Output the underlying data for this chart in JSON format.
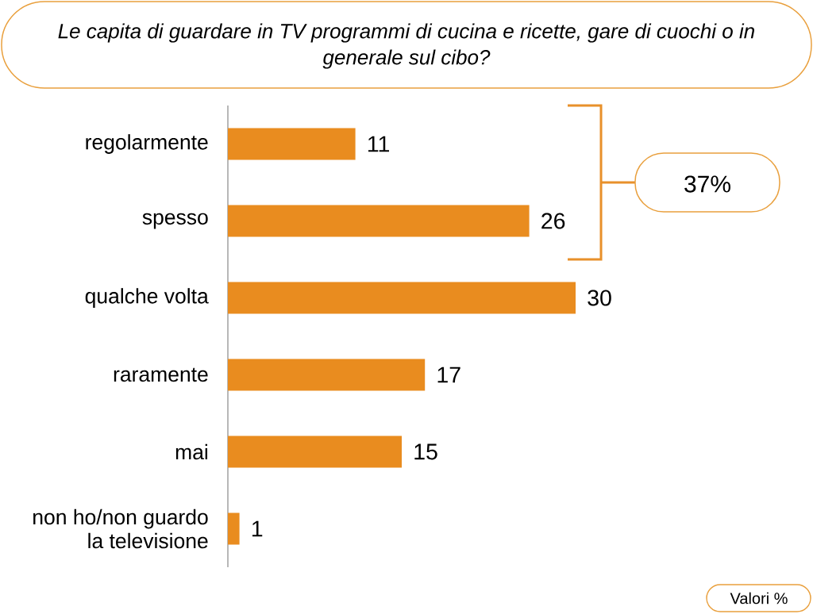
{
  "chart_data": {
    "type": "bar",
    "orientation": "horizontal",
    "title": "Le capita di guardare in TV programmi di cucina e ricette, gare di cuochi o in generale sul cibo?",
    "categories": [
      "regolarmente",
      "spesso",
      "qualche volta",
      "raramente",
      "mai",
      "non ho/non guardo la televisione"
    ],
    "values": [
      11,
      26,
      30,
      17,
      15,
      1
    ],
    "color": "#e98c1f",
    "data_labels": true,
    "annotations": [
      "37%",
      "Valori %"
    ]
  }
}
